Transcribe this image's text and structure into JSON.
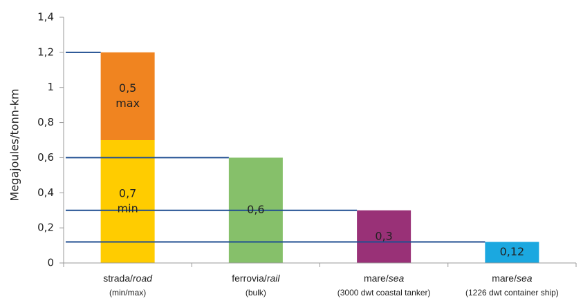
{
  "chart_data": {
    "type": "bar",
    "ylabel": "Megajoules/tonn-km",
    "ylim": [
      0,
      1.4
    ],
    "yticks": [
      {
        "value": 0,
        "label": "0"
      },
      {
        "value": 0.2,
        "label": "0,2"
      },
      {
        "value": 0.4,
        "label": "0,4"
      },
      {
        "value": 0.6,
        "label": "0,6"
      },
      {
        "value": 0.8,
        "label": "0,8"
      },
      {
        "value": 1,
        "label": "1"
      },
      {
        "value": 1.2,
        "label": "1,2"
      },
      {
        "value": 1.4,
        "label": "1,4"
      }
    ],
    "categories": [
      {
        "main": "strada/",
        "main_italic": "road",
        "sub": "(min/max)"
      },
      {
        "main": "ferrovia/",
        "main_italic": "rail",
        "sub": "(bulk)"
      },
      {
        "main": "mare/",
        "main_italic": "sea",
        "sub": "(3000 dwt coastal tanker)"
      },
      {
        "main": "mare/",
        "main_italic": "sea",
        "sub": "(1226 dwt container ship)"
      }
    ],
    "segments": [
      {
        "category": 0,
        "base": 0,
        "value": 0.7,
        "color": "#FFCC00",
        "label_lines": [
          "0,7",
          "min"
        ]
      },
      {
        "category": 0,
        "base": 0.7,
        "value": 0.5,
        "color": "#F08420",
        "label_lines": [
          "0,5",
          "max"
        ]
      },
      {
        "category": 1,
        "base": 0,
        "value": 0.6,
        "color": "#86C06A",
        "label_lines": [
          "0,6"
        ]
      },
      {
        "category": 2,
        "base": 0,
        "value": 0.3,
        "color": "#993177",
        "label_lines": [
          "0,3"
        ]
      },
      {
        "category": 3,
        "base": 0,
        "value": 0.12,
        "color": "#1BA8E0",
        "label_lines": [
          "0,12"
        ]
      }
    ],
    "reference_lines": [
      {
        "value": 1.2,
        "to_category": 0
      },
      {
        "value": 0.6,
        "to_category": 1
      },
      {
        "value": 0.3,
        "to_category": 2
      },
      {
        "value": 0.12,
        "to_category": 3
      }
    ],
    "reference_line_color": "#1F4E91",
    "axis_color": "#999999"
  }
}
